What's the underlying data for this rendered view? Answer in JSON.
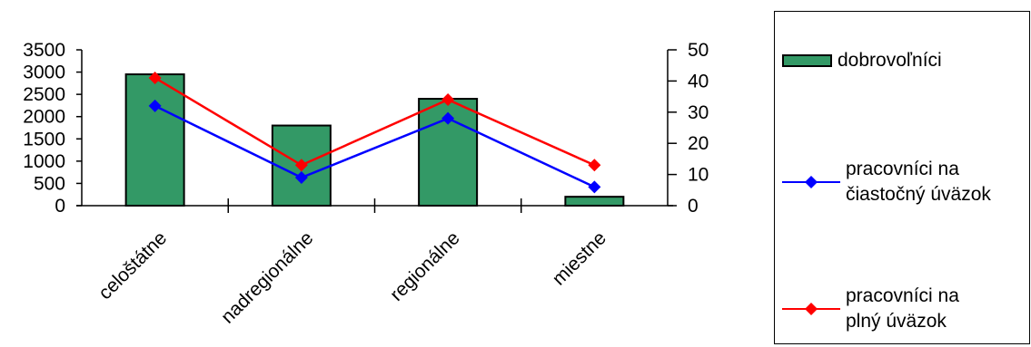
{
  "chart_data": {
    "type": "bar",
    "categories": [
      "celoštátne",
      "nadregionálne",
      "regionálne",
      "miestne"
    ],
    "series": [
      {
        "name": "dobrovoľníci",
        "kind": "bar",
        "axis": "left",
        "color": "#339966",
        "values": [
          2950,
          1800,
          2400,
          200
        ]
      },
      {
        "name": "pracovníci na čiastočný úväzok",
        "kind": "line",
        "axis": "right",
        "color": "#0000ff",
        "values": [
          32,
          9,
          28,
          6
        ]
      },
      {
        "name": "pracovníci na plný úväzok",
        "kind": "line",
        "axis": "right",
        "color": "#ff0000",
        "values": [
          41,
          13,
          34,
          13
        ]
      }
    ],
    "y_left": {
      "ylim": [
        0,
        3500
      ],
      "ticks": [
        0,
        500,
        1000,
        1500,
        2000,
        2500,
        3000,
        3500
      ]
    },
    "y_right": {
      "ylim": [
        0,
        50
      ],
      "ticks": [
        0,
        10,
        20,
        30,
        40,
        50
      ]
    },
    "grid": false,
    "legend_position": "right"
  },
  "legend": [
    {
      "lines": [
        "dobrovoľníci"
      ],
      "type": "bar",
      "color": "#339966"
    },
    {
      "lines": [
        "pracovníci na",
        "čiastočný úväzok"
      ],
      "type": "line",
      "color": "#0000ff"
    },
    {
      "lines": [
        "pracovníci na",
        "plný úväzok"
      ],
      "type": "line",
      "color": "#ff0000"
    }
  ]
}
